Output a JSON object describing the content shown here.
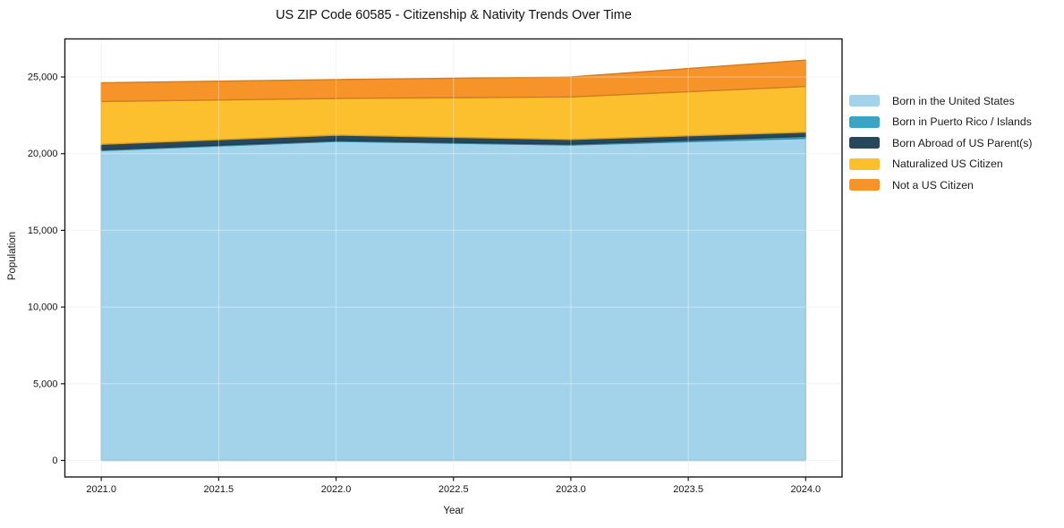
{
  "chart_data": {
    "type": "area",
    "stacked": true,
    "title": "US ZIP Code 60585 - Citizenship & Nativity Trends Over Time",
    "xlabel": "Year",
    "ylabel": "Population",
    "x": [
      2021,
      2022,
      2023,
      2024
    ],
    "series": [
      {
        "name": "Born in the United States",
        "color": "#a3d3ea",
        "values": [
          20200,
          20800,
          20560,
          21000
        ]
      },
      {
        "name": "Born in Puerto Rico / Islands",
        "color": "#3ba3c4",
        "values": [
          60,
          60,
          60,
          130
        ]
      },
      {
        "name": "Born Abroad of US Parent(s)",
        "color": "#27485c",
        "values": [
          350,
          350,
          310,
          270
        ]
      },
      {
        "name": "Naturalized US Citizen",
        "color": "#fcbf2d",
        "values": [
          2790,
          2390,
          2770,
          2980
        ]
      },
      {
        "name": "Not a US Citizen",
        "color": "#f79429",
        "values": [
          1220,
          1230,
          1300,
          1720
        ]
      }
    ],
    "totals": [
      24620,
      24830,
      25000,
      26100
    ],
    "xlim": [
      2020.845,
      2024.155
    ],
    "ylim": [
      -1080,
      27480
    ],
    "xticks": [
      {
        "v": 2021.0,
        "label": "2021.0"
      },
      {
        "v": 2021.5,
        "label": "2021.5"
      },
      {
        "v": 2022.0,
        "label": "2022.0"
      },
      {
        "v": 2022.5,
        "label": "2022.5"
      },
      {
        "v": 2023.0,
        "label": "2023.0"
      },
      {
        "v": 2023.5,
        "label": "2023.5"
      },
      {
        "v": 2024.0,
        "label": "2024.0"
      }
    ],
    "yticks": [
      {
        "v": 0,
        "label": "0"
      },
      {
        "v": 5000,
        "label": "5,000"
      },
      {
        "v": 10000,
        "label": "10,000"
      },
      {
        "v": 15000,
        "label": "15,000"
      },
      {
        "v": 20000,
        "label": "20,000"
      },
      {
        "v": 25000,
        "label": "25,000"
      }
    ],
    "grid": true,
    "legend_position": "right-outside",
    "colors": {
      "spine": "#1a1a1a",
      "grid_under": "#ededed",
      "grid_over": "rgba(255,255,255,0.38)",
      "tick_text": "#151515"
    }
  }
}
